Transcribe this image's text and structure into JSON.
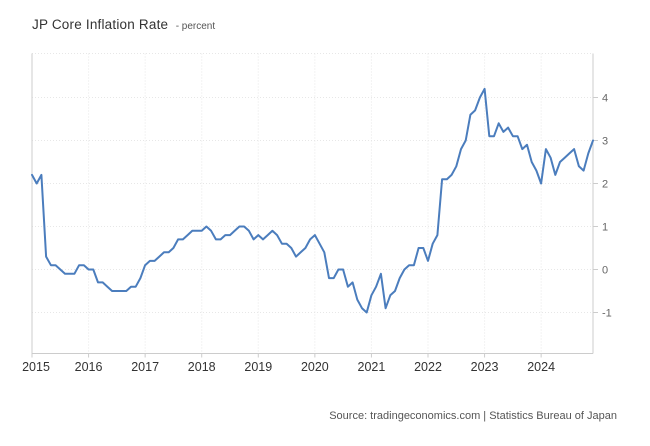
{
  "page": {
    "title": "JP Core Inflation Rate",
    "unit_label": "- percent",
    "source": "Source: tradingeconomics.com | Statistics Bureau of Japan"
  },
  "chart_data": {
    "type": "line",
    "title": "JP Core Inflation Rate",
    "ylabel": "percent",
    "grid": true,
    "legend_position": "none",
    "y_axis_side": "right",
    "frequency": "monthly",
    "x_range": [
      "2015-01",
      "2024-12"
    ],
    "x_tick_labels": [
      "2015",
      "2016",
      "2017",
      "2018",
      "2019",
      "2020",
      "2021",
      "2022",
      "2023",
      "2024"
    ],
    "y_ticks": [
      -1,
      0,
      1,
      2,
      3,
      4
    ],
    "ylim": [
      -1.95,
      5.02
    ],
    "colors": {
      "line": "#4b7dbd",
      "grid": "#e7e7e7",
      "border": "#cccccc",
      "x_label": "#333333",
      "y_label": "#666666"
    },
    "series": [
      {
        "name": "JP Core Inflation Rate",
        "start": "2015-01",
        "values": [
          2.2,
          2.0,
          2.2,
          0.3,
          0.1,
          0.1,
          0.0,
          -0.1,
          -0.1,
          -0.1,
          0.1,
          0.1,
          0.0,
          0.0,
          -0.3,
          -0.3,
          -0.4,
          -0.5,
          -0.5,
          -0.5,
          -0.5,
          -0.4,
          -0.4,
          -0.2,
          0.1,
          0.2,
          0.2,
          0.3,
          0.4,
          0.4,
          0.5,
          0.7,
          0.7,
          0.8,
          0.9,
          0.9,
          0.9,
          1.0,
          0.9,
          0.7,
          0.7,
          0.8,
          0.8,
          0.9,
          1.0,
          1.0,
          0.9,
          0.7,
          0.8,
          0.7,
          0.8,
          0.9,
          0.8,
          0.6,
          0.6,
          0.5,
          0.3,
          0.4,
          0.5,
          0.7,
          0.8,
          0.6,
          0.4,
          -0.2,
          -0.2,
          0.0,
          0.0,
          -0.4,
          -0.3,
          -0.7,
          -0.9,
          -1.0,
          -0.6,
          -0.4,
          -0.1,
          -0.9,
          -0.6,
          -0.5,
          -0.2,
          0.0,
          0.1,
          0.1,
          0.5,
          0.5,
          0.2,
          0.6,
          0.8,
          2.1,
          2.1,
          2.2,
          2.4,
          2.8,
          3.0,
          3.6,
          3.7,
          4.0,
          4.2,
          3.1,
          3.1,
          3.4,
          3.2,
          3.3,
          3.1,
          3.1,
          2.8,
          2.9,
          2.5,
          2.3,
          2.0,
          2.8,
          2.6,
          2.2,
          2.5,
          2.6,
          2.7,
          2.8,
          2.4,
          2.3,
          2.7,
          3.0
        ]
      }
    ]
  }
}
